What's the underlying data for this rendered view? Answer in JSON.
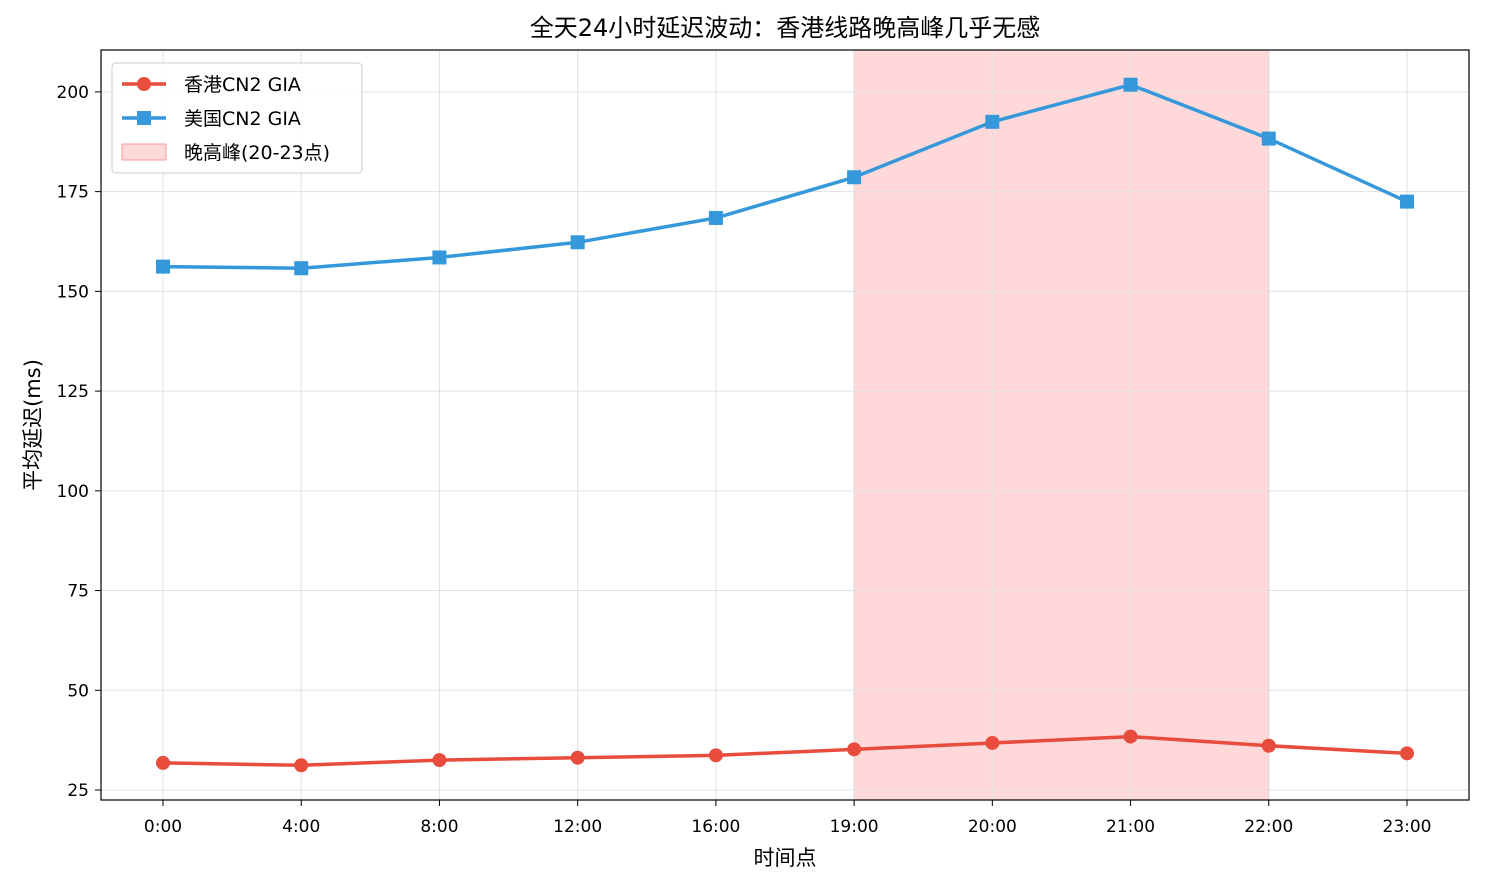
{
  "chart_data": {
    "type": "line",
    "title": "全天24小时延迟波动：香港线路晚高峰几乎无感",
    "xlabel": "时间点",
    "ylabel": "平均延迟(ms)",
    "categories": [
      "0:00",
      "4:00",
      "8:00",
      "12:00",
      "16:00",
      "19:00",
      "20:00",
      "21:00",
      "22:00",
      "23:00"
    ],
    "yticks": [
      25,
      50,
      75,
      100,
      125,
      150,
      175,
      200
    ],
    "ylim": [
      22.5,
      210.5
    ],
    "grid": true,
    "legend_position": "top-left",
    "series": [
      {
        "name": "香港CN2 GIA",
        "color": "#e74c3c",
        "marker": "circle",
        "values": [
          31.8,
          31.2,
          32.5,
          33.1,
          33.7,
          35.2,
          36.8,
          38.4,
          36.1,
          34.2
        ]
      },
      {
        "name": "美国CN2 GIA",
        "color": "#3498db",
        "marker": "square",
        "values": [
          156.2,
          155.8,
          158.5,
          162.3,
          168.4,
          178.6,
          192.5,
          201.8,
          188.3,
          172.5
        ]
      }
    ],
    "highlight": {
      "label": "晚高峰(20-23点)",
      "start": "19:00",
      "end": "22:00",
      "color": "#ffb3b3"
    }
  }
}
